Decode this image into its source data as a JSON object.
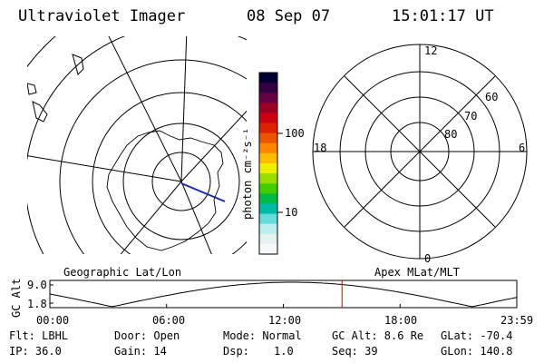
{
  "header": {
    "instrument": "Ultraviolet Imager",
    "date": "08 Sep 07",
    "time": "15:01:17 UT"
  },
  "colorbar": {
    "unit_label": "photon cm⁻²s⁻¹",
    "ticks": [
      "100",
      "10"
    ],
    "colors": [
      "#000033",
      "#330044",
      "#660044",
      "#990022",
      "#cc0011",
      "#dd2200",
      "#ee5500",
      "#ff8800",
      "#ffbb00",
      "#eeee00",
      "#99dd00",
      "#44cc00",
      "#00bb44",
      "#00bbaa",
      "#66dddd",
      "#bbeeee",
      "#e6f2f2",
      "#f4f8f8"
    ]
  },
  "polar": {
    "mlt_labels": [
      "12",
      "18",
      "6",
      "0"
    ],
    "lat_labels": [
      "60",
      "70",
      "80"
    ]
  },
  "panel_labels": {
    "left": "Geographic Lat/Lon",
    "right": "Apex MLat/MLT"
  },
  "altitude_plot": {
    "ylabel": "GC Alt",
    "ytick_top": "9.0",
    "ytick_bottom": "1.8",
    "xticks": [
      "00:00",
      "06:00",
      "12:00",
      "18:00",
      "23:59"
    ],
    "marker_time": "15:01",
    "marker_color": "#cc0000"
  },
  "footer": {
    "flt": "Flt: LBHL",
    "ip": "IP: 36.0",
    "door": "Door: Open",
    "gain": "Gain: 14",
    "mode": "Mode: Normal",
    "dsp_label": "Dsp:",
    "dsp_value": "1.0",
    "gcalt": "GC Alt: 8.6 Re",
    "seq": "Seq: 39",
    "glat": "GLat: -70.4",
    "glon": "GLon: 140.8"
  }
}
